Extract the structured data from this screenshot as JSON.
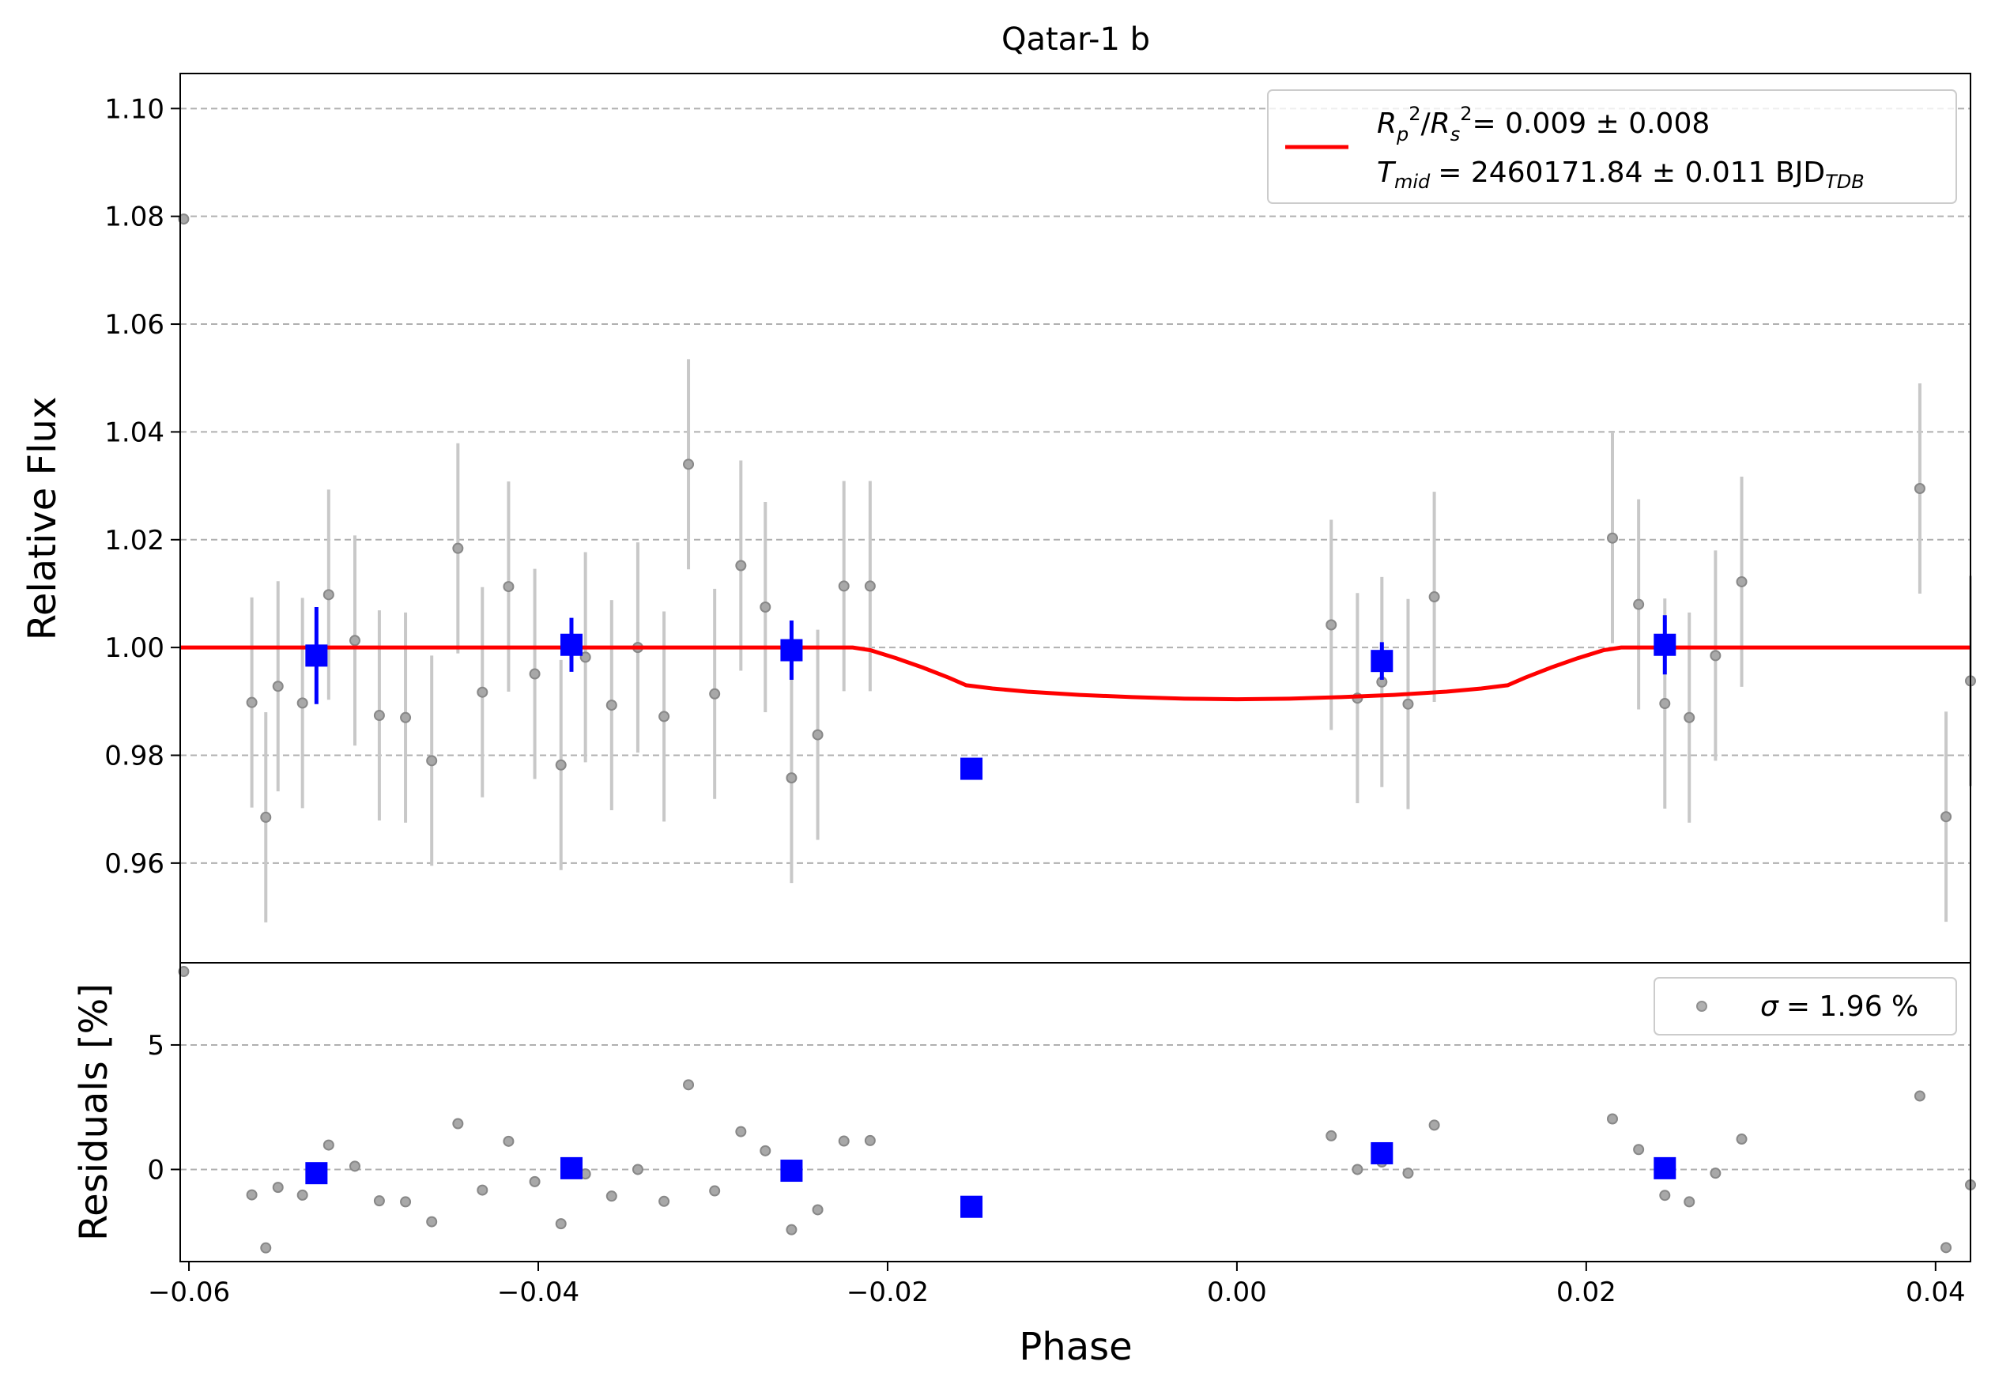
{
  "chart_data": [
    {
      "panel": "main",
      "type": "scatter",
      "title": "Qatar-1 b",
      "xlabel": "",
      "ylabel": "Relative Flux",
      "xlim": [
        -0.0605,
        0.042
      ],
      "ylim": [
        0.9415,
        1.1065
      ],
      "grid": "horizontal-dashed",
      "xticks": [
        -0.06,
        -0.04,
        -0.02,
        0.0,
        0.02,
        0.04
      ],
      "xtick_labels": [
        "−0.06",
        "−0.04",
        "−0.02",
        "0.00",
        "0.02",
        "0.04"
      ],
      "yticks": [
        0.96,
        0.98,
        1.0,
        1.02,
        1.04,
        1.06,
        1.08,
        1.1
      ],
      "ytick_labels": [
        "0.96",
        "0.98",
        "1.00",
        "1.02",
        "1.04",
        "1.06",
        "1.08",
        "1.10"
      ],
      "legend": {
        "placement": "top-right",
        "line1": "= 0.009 ± 0.008",
        "line2": "= 2460171.84 ± 0.011 BJD",
        "rp_label": "R",
        "tmid_label": "T",
        "tmid_sub": "mid",
        "bjd_sub": "TDB"
      },
      "series": [
        {
          "kind": "raw",
          "color": "#808080",
          "error_color": "#c8c8c8",
          "points": [
            {
              "x": -0.0603,
              "y": 1.0795,
              "e": 0.0
            },
            {
              "x": -0.0564,
              "y": 0.9898,
              "e": 0.0195
            },
            {
              "x": -0.0556,
              "y": 0.9685,
              "e": 0.0195
            },
            {
              "x": -0.0549,
              "y": 0.9928,
              "e": 0.0195
            },
            {
              "x": -0.0535,
              "y": 0.9897,
              "e": 0.0195
            },
            {
              "x": -0.052,
              "y": 1.0098,
              "e": 0.0195
            },
            {
              "x": -0.0505,
              "y": 1.0013,
              "e": 0.0195
            },
            {
              "x": -0.0491,
              "y": 0.9874,
              "e": 0.0195
            },
            {
              "x": -0.0476,
              "y": 0.987,
              "e": 0.0195
            },
            {
              "x": -0.0461,
              "y": 0.979,
              "e": 0.0195
            },
            {
              "x": -0.0446,
              "y": 1.0184,
              "e": 0.0195
            },
            {
              "x": -0.0432,
              "y": 0.9917,
              "e": 0.0195
            },
            {
              "x": -0.0417,
              "y": 1.0113,
              "e": 0.0195
            },
            {
              "x": -0.0402,
              "y": 0.9951,
              "e": 0.0195
            },
            {
              "x": -0.0387,
              "y": 0.9782,
              "e": 0.0195
            },
            {
              "x": -0.0373,
              "y": 0.9982,
              "e": 0.0195
            },
            {
              "x": -0.0358,
              "y": 0.9893,
              "e": 0.0195
            },
            {
              "x": -0.0343,
              "y": 1.0,
              "e": 0.0195
            },
            {
              "x": -0.0328,
              "y": 0.9872,
              "e": 0.0195
            },
            {
              "x": -0.0314,
              "y": 1.034,
              "e": 0.0195
            },
            {
              "x": -0.0299,
              "y": 0.9914,
              "e": 0.0195
            },
            {
              "x": -0.0284,
              "y": 1.0152,
              "e": 0.0195
            },
            {
              "x": -0.027,
              "y": 1.0075,
              "e": 0.0195
            },
            {
              "x": -0.0255,
              "y": 0.9758,
              "e": 0.0195
            },
            {
              "x": -0.024,
              "y": 0.9838,
              "e": 0.0195
            },
            {
              "x": -0.0225,
              "y": 1.0114,
              "e": 0.0195
            },
            {
              "x": -0.021,
              "y": 1.0114,
              "e": 0.0195
            },
            {
              "x": 0.0054,
              "y": 1.0042,
              "e": 0.0195
            },
            {
              "x": 0.0069,
              "y": 0.9906,
              "e": 0.0195
            },
            {
              "x": 0.0083,
              "y": 0.9936,
              "e": 0.0195
            },
            {
              "x": 0.0098,
              "y": 0.9895,
              "e": 0.0195
            },
            {
              "x": 0.0113,
              "y": 1.0094,
              "e": 0.0195
            },
            {
              "x": 0.0215,
              "y": 1.0203,
              "e": 0.0195
            },
            {
              "x": 0.023,
              "y": 1.008,
              "e": 0.0195
            },
            {
              "x": 0.0245,
              "y": 0.9896,
              "e": 0.0195
            },
            {
              "x": 0.0259,
              "y": 0.987,
              "e": 0.0195
            },
            {
              "x": 0.0274,
              "y": 0.9985,
              "e": 0.0195
            },
            {
              "x": 0.0289,
              "y": 1.0122,
              "e": 0.0195
            },
            {
              "x": 0.0391,
              "y": 1.0295,
              "e": 0.0195
            },
            {
              "x": 0.0406,
              "y": 0.9686,
              "e": 0.0195
            },
            {
              "x": 0.042,
              "y": 0.9938,
              "e": 0.0195
            }
          ]
        },
        {
          "kind": "binned",
          "color": "#0000ff",
          "points": [
            {
              "x": -0.0527,
              "y": 0.9985,
              "e": 0.009
            },
            {
              "x": -0.0381,
              "y": 1.0005,
              "e": 0.005
            },
            {
              "x": -0.0255,
              "y": 0.9995,
              "e": 0.0055
            },
            {
              "x": -0.0152,
              "y": 0.9775,
              "e": 0.0
            },
            {
              "x": 0.0083,
              "y": 0.9975,
              "e": 0.0035
            },
            {
              "x": 0.0245,
              "y": 1.0005,
              "e": 0.0055
            }
          ]
        },
        {
          "kind": "model",
          "color": "#ff0000",
          "points": [
            {
              "x": -0.0605,
              "y": 1.0
            },
            {
              "x": -0.022,
              "y": 1.0
            },
            {
              "x": -0.021,
              "y": 0.9995
            },
            {
              "x": -0.0195,
              "y": 0.998
            },
            {
              "x": -0.018,
              "y": 0.9963
            },
            {
              "x": -0.0165,
              "y": 0.9944
            },
            {
              "x": -0.0155,
              "y": 0.993
            },
            {
              "x": -0.014,
              "y": 0.9924
            },
            {
              "x": -0.012,
              "y": 0.9918
            },
            {
              "x": -0.009,
              "y": 0.9912
            },
            {
              "x": -0.006,
              "y": 0.9908
            },
            {
              "x": -0.003,
              "y": 0.9905
            },
            {
              "x": 0.0,
              "y": 0.9904
            },
            {
              "x": 0.003,
              "y": 0.9905
            },
            {
              "x": 0.006,
              "y": 0.9908
            },
            {
              "x": 0.009,
              "y": 0.9912
            },
            {
              "x": 0.012,
              "y": 0.9918
            },
            {
              "x": 0.014,
              "y": 0.9924
            },
            {
              "x": 0.0155,
              "y": 0.993
            },
            {
              "x": 0.0165,
              "y": 0.9944
            },
            {
              "x": 0.018,
              "y": 0.9963
            },
            {
              "x": 0.0195,
              "y": 0.998
            },
            {
              "x": 0.021,
              "y": 0.9995
            },
            {
              "x": 0.022,
              "y": 1.0
            },
            {
              "x": 0.042,
              "y": 1.0
            }
          ]
        }
      ]
    },
    {
      "panel": "residuals",
      "type": "scatter",
      "xlabel": "Phase",
      "ylabel": "Residuals [%]",
      "xlim": [
        -0.0605,
        0.042
      ],
      "ylim": [
        -3.7,
        8.3
      ],
      "grid": "horizontal-dashed",
      "yticks": [
        0,
        5
      ],
      "ytick_labels": [
        "0",
        "5"
      ],
      "legend": {
        "placement": "top-right",
        "sigma_symbol": "σ",
        "label": "= 1.96 %"
      },
      "series": [
        {
          "kind": "raw",
          "color": "#808080",
          "points": [
            {
              "x": -0.0603,
              "y": 7.95
            },
            {
              "x": -0.0564,
              "y": -1.02
            },
            {
              "x": -0.0556,
              "y": -3.15
            },
            {
              "x": -0.0549,
              "y": -0.72
            },
            {
              "x": -0.0535,
              "y": -1.03
            },
            {
              "x": -0.052,
              "y": 0.98
            },
            {
              "x": -0.0505,
              "y": 0.13
            },
            {
              "x": -0.0491,
              "y": -1.26
            },
            {
              "x": -0.0476,
              "y": -1.3
            },
            {
              "x": -0.0461,
              "y": -2.1
            },
            {
              "x": -0.0446,
              "y": 1.84
            },
            {
              "x": -0.0432,
              "y": -0.83
            },
            {
              "x": -0.0417,
              "y": 1.13
            },
            {
              "x": -0.0402,
              "y": -0.49
            },
            {
              "x": -0.0387,
              "y": -2.18
            },
            {
              "x": -0.0373,
              "y": -0.18
            },
            {
              "x": -0.0358,
              "y": -1.07
            },
            {
              "x": -0.0343,
              "y": 0.0
            },
            {
              "x": -0.0328,
              "y": -1.28
            },
            {
              "x": -0.0314,
              "y": 3.4
            },
            {
              "x": -0.0299,
              "y": -0.86
            },
            {
              "x": -0.0284,
              "y": 1.52
            },
            {
              "x": -0.027,
              "y": 0.75
            },
            {
              "x": -0.0255,
              "y": -2.42
            },
            {
              "x": -0.024,
              "y": -1.62
            },
            {
              "x": -0.0225,
              "y": 1.14
            },
            {
              "x": -0.021,
              "y": 1.16
            },
            {
              "x": 0.0054,
              "y": 1.35
            },
            {
              "x": 0.0069,
              "y": 0.0
            },
            {
              "x": 0.0083,
              "y": 0.3
            },
            {
              "x": 0.0098,
              "y": -0.15
            },
            {
              "x": 0.0113,
              "y": 1.78
            },
            {
              "x": 0.0215,
              "y": 2.03
            },
            {
              "x": 0.023,
              "y": 0.8
            },
            {
              "x": 0.0245,
              "y": -1.04
            },
            {
              "x": 0.0259,
              "y": -1.3
            },
            {
              "x": 0.0274,
              "y": -0.15
            },
            {
              "x": 0.0289,
              "y": 1.22
            },
            {
              "x": 0.0391,
              "y": 2.95
            },
            {
              "x": 0.0406,
              "y": -3.14
            },
            {
              "x": 0.042,
              "y": -0.62
            }
          ]
        },
        {
          "kind": "binned",
          "color": "#0000ff",
          "points": [
            {
              "x": -0.0527,
              "y": -0.15
            },
            {
              "x": -0.0381,
              "y": 0.05
            },
            {
              "x": -0.0255,
              "y": -0.05
            },
            {
              "x": -0.0152,
              "y": -1.5
            },
            {
              "x": 0.0083,
              "y": 0.65
            },
            {
              "x": 0.0245,
              "y": 0.05
            }
          ]
        }
      ]
    }
  ]
}
